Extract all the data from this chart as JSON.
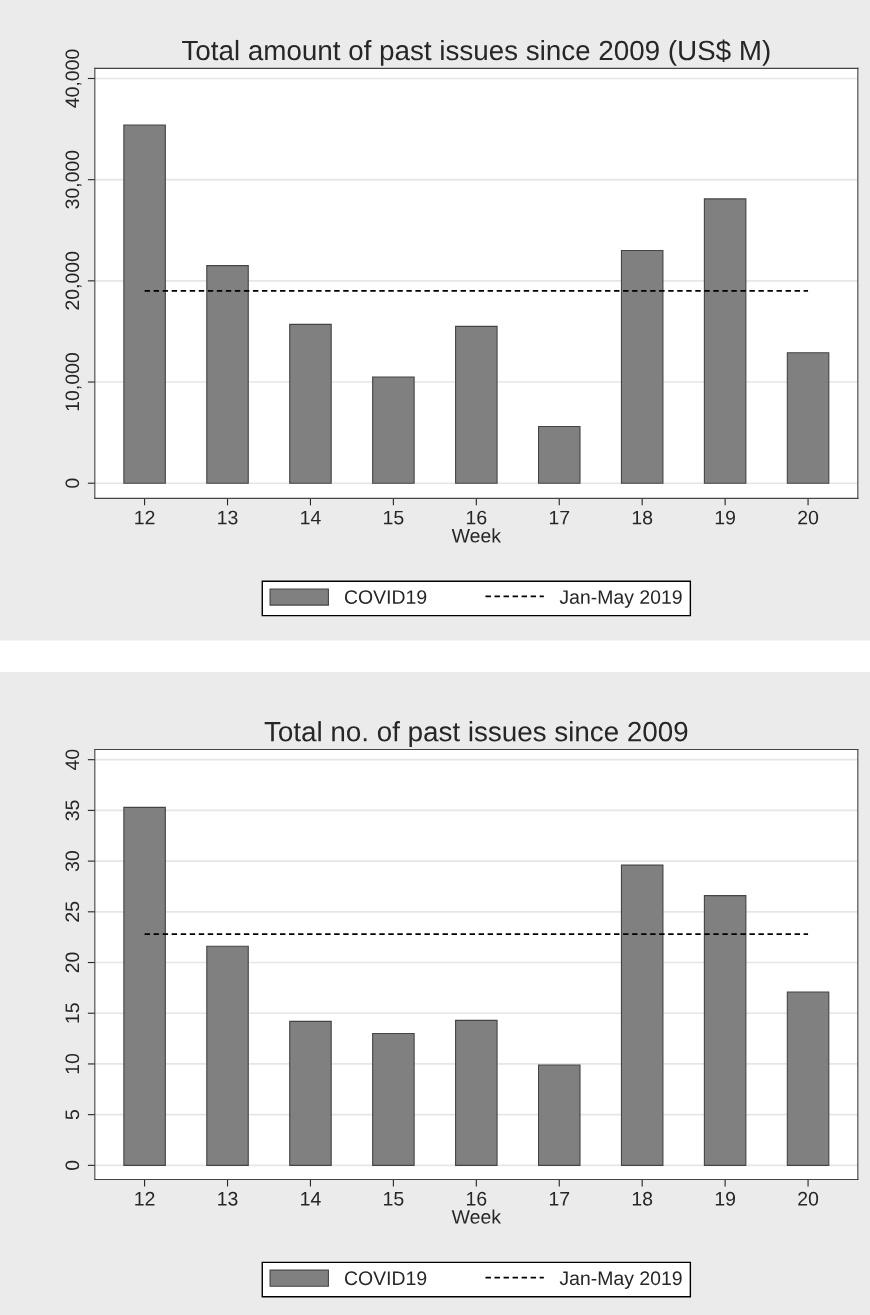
{
  "chart_data": [
    {
      "type": "bar",
      "title": "Total amount of past issues since 2009 (US$ M)",
      "xlabel": "Week",
      "categories": [
        "12",
        "13",
        "14",
        "15",
        "16",
        "17",
        "18",
        "19",
        "20"
      ],
      "series": [
        {
          "name": "COVID19",
          "color": "#808080",
          "values": [
            35400,
            21500,
            15700,
            10500,
            15500,
            5600,
            23000,
            28100,
            12900
          ]
        },
        {
          "name": "Jan-May 2019",
          "type": "line",
          "color": "#000000",
          "line_style": "dashed",
          "values": [
            19000,
            19000,
            19000,
            19000,
            19000,
            19000,
            19000,
            19000,
            19000
          ]
        }
      ],
      "ylim": [
        -1500,
        41000
      ],
      "yticks": [
        {
          "value": 0,
          "label": "0"
        },
        {
          "value": 10000,
          "label": "10,000"
        },
        {
          "value": 20000,
          "label": "20,000"
        },
        {
          "value": 30000,
          "label": "30,000"
        },
        {
          "value": 40000,
          "label": "40,000"
        }
      ],
      "grid": "y",
      "legend": "bottom"
    },
    {
      "type": "bar",
      "title": "Total no. of past issues since 2009",
      "xlabel": "Week",
      "categories": [
        "12",
        "13",
        "14",
        "15",
        "16",
        "17",
        "18",
        "19",
        "20"
      ],
      "series": [
        {
          "name": "COVID19",
          "color": "#808080",
          "values": [
            35.3,
            21.6,
            14.2,
            13.0,
            14.3,
            9.9,
            29.6,
            26.6,
            17.1
          ]
        },
        {
          "name": "Jan-May 2019",
          "type": "line",
          "color": "#000000",
          "line_style": "dashed",
          "values": [
            22.8,
            22.8,
            22.8,
            22.8,
            22.8,
            22.8,
            22.8,
            22.8,
            22.8
          ]
        }
      ],
      "ylim": [
        -1.4,
        41
      ],
      "yticks": [
        0,
        5,
        10,
        15,
        20,
        25,
        30,
        35,
        40
      ],
      "grid": "y",
      "legend": "bottom"
    }
  ]
}
